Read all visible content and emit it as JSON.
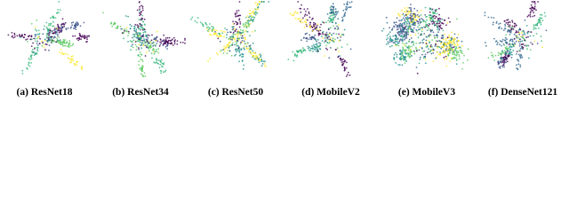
{
  "figure": {
    "panels": [
      {
        "caption": "(a) ResNet18"
      },
      {
        "caption": "(b) ResNet34"
      },
      {
        "caption": "(c) ResNet50"
      },
      {
        "caption": "(d) MobileV2"
      },
      {
        "caption": "(e) MobileV3"
      },
      {
        "caption": "(f) DenseNet121"
      }
    ]
  }
}
